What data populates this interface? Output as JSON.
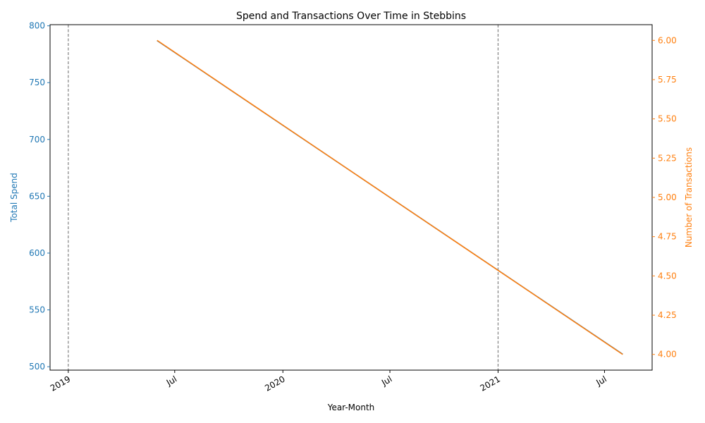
{
  "chart_data": {
    "type": "line",
    "title": "Spend and Transactions Over Time in Stebbins",
    "xlabel": "Year-Month",
    "x_tick_labels": [
      "2019",
      "Jul",
      "2020",
      "Jul",
      "2021",
      "Jul"
    ],
    "x_tick_dates": [
      "2019-01-01",
      "2019-07-01",
      "2020-01-01",
      "2020-07-01",
      "2021-01-01",
      "2021-07-01"
    ],
    "xlim": [
      "2018-12-01",
      "2021-09-20"
    ],
    "vlines": [
      "2019-01-01",
      "2021-01-01"
    ],
    "grid": false,
    "left_axis": {
      "label": "Total Spend",
      "color": "#1f77b4",
      "ylim": [
        497,
        801
      ],
      "ticks": [
        500,
        550,
        600,
        650,
        700,
        750,
        800
      ]
    },
    "right_axis": {
      "label": "Number of Transactions",
      "color": "#ff7f0e",
      "ylim": [
        3.9,
        6.1
      ],
      "ticks": [
        "4.00",
        "4.25",
        "4.50",
        "4.75",
        "5.00",
        "5.25",
        "5.50",
        "5.75",
        "6.00"
      ]
    },
    "series": [
      {
        "axis": "left",
        "color": "#1f77b4",
        "points": [
          {
            "x": "2019-06-01",
            "y": 787
          },
          {
            "x": "2021-08-01",
            "y": 511
          }
        ]
      },
      {
        "axis": "right",
        "color": "#ff7f0e",
        "points": [
          {
            "x": "2019-06-01",
            "y": 6.0
          },
          {
            "x": "2021-08-01",
            "y": 4.0
          }
        ]
      }
    ]
  }
}
